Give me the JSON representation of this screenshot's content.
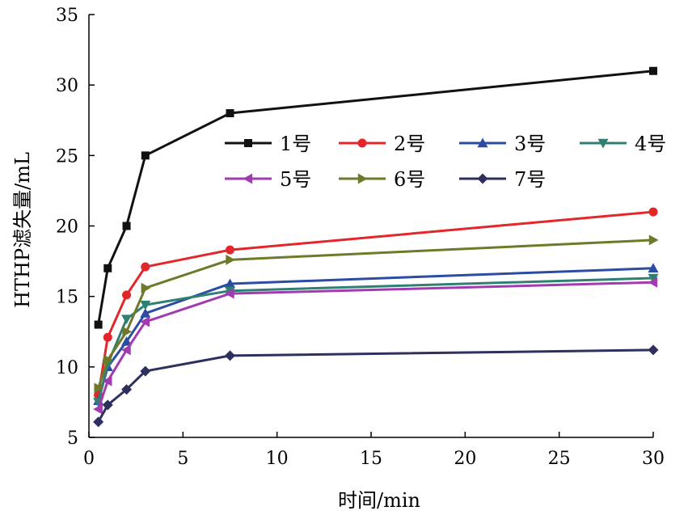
{
  "chart_data": {
    "type": "line",
    "title": "",
    "xlabel": "时间/min",
    "ylabel": "HTHP滤失量/mL",
    "xlim": [
      0,
      30
    ],
    "ylim": [
      5,
      35
    ],
    "xticks": [
      0,
      5,
      10,
      15,
      20,
      25,
      30
    ],
    "yticks": [
      5,
      10,
      15,
      20,
      25,
      30,
      35
    ],
    "grid": false,
    "legend_position": "top-right",
    "x": [
      0.5,
      1,
      2,
      3,
      7.5,
      30
    ],
    "series": [
      {
        "name": "1号",
        "color": "#111111",
        "marker": "square",
        "values": [
          13.0,
          17.0,
          20.0,
          25.0,
          28.0,
          31.0
        ]
      },
      {
        "name": "2号",
        "color": "#e3262a",
        "marker": "circle",
        "values": [
          8.0,
          12.1,
          15.1,
          17.1,
          18.3,
          21.0
        ]
      },
      {
        "name": "3号",
        "color": "#2a4da3",
        "marker": "triangle-up",
        "values": [
          7.6,
          10.0,
          11.8,
          13.8,
          15.9,
          17.0
        ]
      },
      {
        "name": "4号",
        "color": "#2f8073",
        "marker": "triangle-down",
        "values": [
          7.5,
          10.2,
          13.4,
          14.4,
          15.4,
          16.3
        ]
      },
      {
        "name": "5号",
        "color": "#a23bb0",
        "marker": "triangle-left",
        "values": [
          7.0,
          9.0,
          11.2,
          13.2,
          15.2,
          16.0
        ]
      },
      {
        "name": "6号",
        "color": "#6e7a2a",
        "marker": "triangle-right",
        "values": [
          8.5,
          10.5,
          12.5,
          15.6,
          17.6,
          19.0
        ]
      },
      {
        "name": "7号",
        "color": "#2d2f5e",
        "marker": "diamond",
        "values": [
          6.1,
          7.3,
          8.4,
          9.7,
          10.8,
          11.2
        ]
      }
    ]
  }
}
